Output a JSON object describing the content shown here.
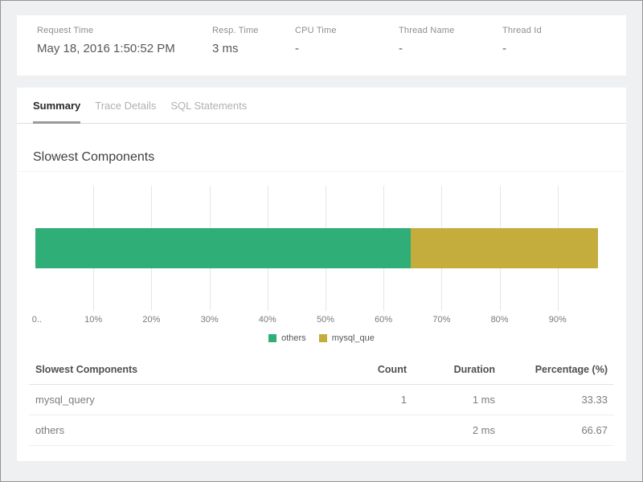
{
  "request_summary": {
    "fields": [
      {
        "label": "Request Time",
        "value": "May 18, 2016 1:50:52 PM"
      },
      {
        "label": "Resp. Time",
        "value": "3 ms"
      },
      {
        "label": "CPU Time",
        "value": "-"
      },
      {
        "label": "Thread Name",
        "value": "-"
      },
      {
        "label": "Thread Id",
        "value": "-"
      }
    ]
  },
  "tabs": [
    {
      "label": "Summary",
      "active": true
    },
    {
      "label": "Trace Details",
      "active": false
    },
    {
      "label": "SQL Statements",
      "active": false
    }
  ],
  "panel": {
    "title": "Slowest Components"
  },
  "chart_data": {
    "type": "bar",
    "orientation": "horizontal",
    "stacked": true,
    "title": "Slowest Components",
    "series": [
      {
        "name": "others",
        "value": 66.67,
        "color": "#2fae78"
      },
      {
        "name": "mysql_que",
        "value": 33.33,
        "color": "#c4ac3d"
      }
    ],
    "x_ticks": [
      "0..",
      "10%",
      "20%",
      "30%",
      "40%",
      "50%",
      "60%",
      "70%",
      "80%",
      "90%"
    ],
    "xlim": [
      0,
      100
    ],
    "grid": true,
    "legend_position": "bottom"
  },
  "table": {
    "headers": [
      "Slowest Components",
      "Count",
      "Duration",
      "Percentage (%)"
    ],
    "rows": [
      {
        "component": "mysql_query",
        "count": "1",
        "duration": "1 ms",
        "percentage": "33.33"
      },
      {
        "component": "others",
        "count": "",
        "duration": "2 ms",
        "percentage": "66.67"
      }
    ]
  },
  "colors": {
    "background": "#eef0f1",
    "frame_border": "#939598",
    "green_series": "#2fae78",
    "gold_series": "#c4ac3d",
    "active_tab_underline": "#98999b"
  }
}
